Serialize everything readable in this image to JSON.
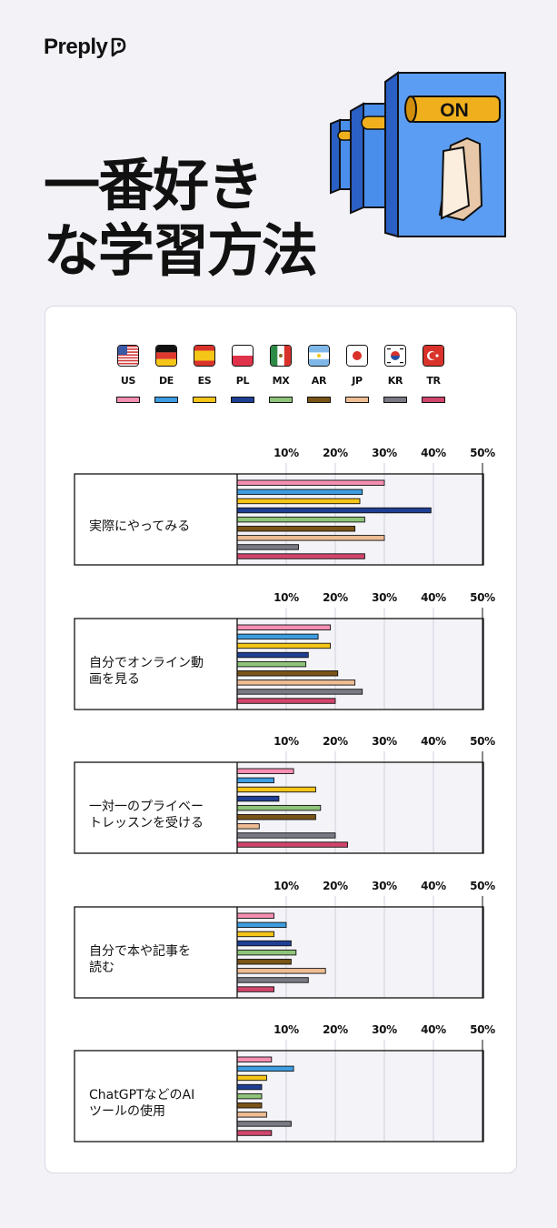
{
  "brand": "Preply",
  "title_lines": [
    "一番好き",
    "な学習方法"
  ],
  "switch_label": "ON",
  "chart_data": {
    "type": "bar",
    "orientation": "horizontal",
    "xlim": [
      0,
      50
    ],
    "ticks": [
      10,
      20,
      30,
      40,
      50
    ],
    "tick_labels": [
      "10%",
      "20%",
      "30%",
      "40%",
      "50%"
    ],
    "legend": "top",
    "series": [
      {
        "name": "US",
        "color": "#f48fb1",
        "flag": "us"
      },
      {
        "name": "DE",
        "color": "#3d9de0",
        "flag": "de"
      },
      {
        "name": "ES",
        "color": "#f5c518",
        "flag": "es"
      },
      {
        "name": "PL",
        "color": "#1f3f94",
        "flag": "pl"
      },
      {
        "name": "MX",
        "color": "#8fc47a",
        "flag": "mx"
      },
      {
        "name": "AR",
        "color": "#7a5417",
        "flag": "ar"
      },
      {
        "name": "JP",
        "color": "#efbd94",
        "flag": "jp"
      },
      {
        "name": "KR",
        "color": "#7a7a85",
        "flag": "kr"
      },
      {
        "name": "TR",
        "color": "#d1456c",
        "flag": "tr"
      }
    ],
    "groups": [
      {
        "label": [
          "実際にやってみる"
        ],
        "values": [
          30,
          25.5,
          25,
          39.5,
          26,
          24,
          30,
          12.5,
          26
        ]
      },
      {
        "label": [
          "自分でオンライン動",
          "画を見る"
        ],
        "values": [
          19,
          16.5,
          19,
          14.5,
          14,
          20.5,
          24,
          25.5,
          20
        ]
      },
      {
        "label": [
          "一対一のプライベー",
          "トレッスンを受ける"
        ],
        "values": [
          11.5,
          7.5,
          16,
          8.5,
          17,
          16,
          4.5,
          20,
          22.5
        ]
      },
      {
        "label": [
          "自分で本や記事を",
          "読む"
        ],
        "values": [
          7.5,
          10,
          7.5,
          11,
          12,
          11,
          18,
          14.5,
          7.5
        ]
      },
      {
        "label": [
          "ChatGPTなどのAI",
          "ツールの使用"
        ],
        "values": [
          7,
          11.5,
          6,
          5,
          5,
          5,
          6,
          11,
          7
        ]
      }
    ]
  }
}
